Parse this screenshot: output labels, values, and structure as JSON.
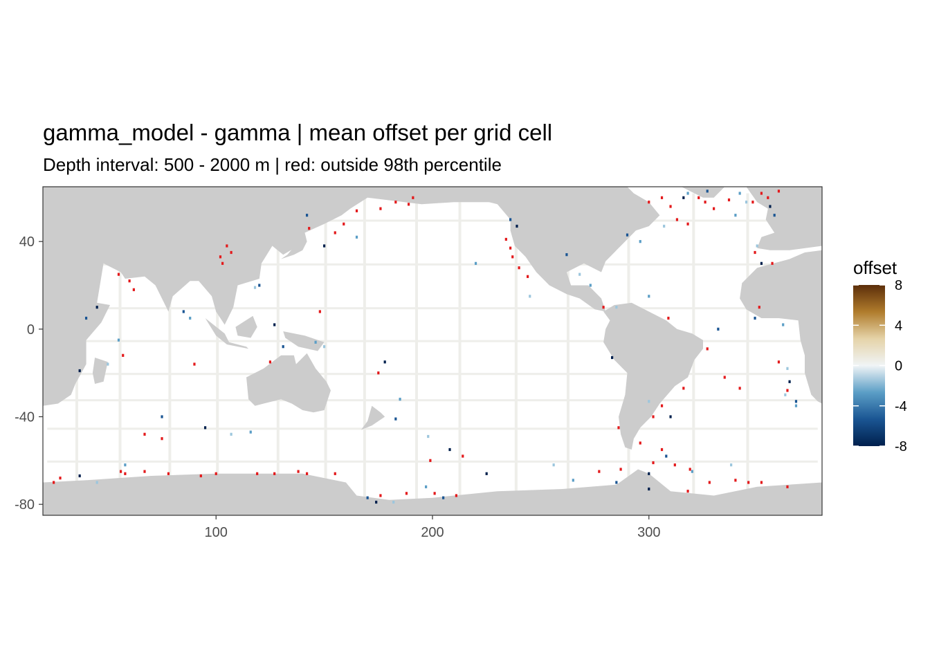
{
  "chart_data": {
    "type": "heatmap",
    "title": "gamma_model - gamma  | mean offset per grid cell",
    "subtitle": "Depth interval: 500 - 2000 m | red: outside 98th percentile",
    "xlabel": "",
    "ylabel": "",
    "xlim": [
      20,
      380
    ],
    "ylim": [
      -85,
      65
    ],
    "x_ticks": [
      100,
      200,
      300
    ],
    "x_tick_labels": [
      "100",
      "200",
      "300"
    ],
    "y_ticks": [
      40,
      0,
      -40,
      -80
    ],
    "y_tick_labels": [
      "40",
      "0",
      "-40",
      "-80"
    ],
    "grid": false,
    "legend": {
      "title": "offset",
      "placement": "right",
      "min": -8,
      "max": 8,
      "ticks": [
        8,
        4,
        0,
        -4,
        -8
      ],
      "tick_labels": [
        "8",
        "4",
        "0",
        "-4",
        "-8"
      ],
      "colors": [
        "#00204d",
        "#1a5593",
        "#5b9ec6",
        "#f0f4f6",
        "#e5d3a8",
        "#b07c2c",
        "#5c2e0a"
      ]
    },
    "colors": {
      "land": "#cccccc",
      "ocean_no_data": "#ffffff",
      "ocean_near_zero": "#eeeeea",
      "outlier": "#e31a1c",
      "panel_border": "#333333"
    },
    "outlier_cells": [
      [
        60,
        22
      ],
      [
        62,
        18
      ],
      [
        103,
        30
      ],
      [
        102,
        33
      ],
      [
        105,
        38
      ],
      [
        107,
        35
      ],
      [
        143,
        46
      ],
      [
        155,
        44
      ],
      [
        159,
        48
      ],
      [
        165,
        54
      ],
      [
        176,
        55
      ],
      [
        183,
        58
      ],
      [
        189,
        57
      ],
      [
        191,
        60
      ],
      [
        234,
        41
      ],
      [
        236,
        37
      ],
      [
        237,
        33
      ],
      [
        240,
        28
      ],
      [
        244,
        24
      ],
      [
        300,
        58
      ],
      [
        306,
        60
      ],
      [
        310,
        56
      ],
      [
        313,
        50
      ],
      [
        318,
        48
      ],
      [
        323,
        60
      ],
      [
        326,
        58
      ],
      [
        330,
        55
      ],
      [
        337,
        59
      ],
      [
        348,
        58
      ],
      [
        352,
        62
      ],
      [
        355,
        60
      ],
      [
        360,
        63
      ],
      [
        349,
        35
      ],
      [
        357,
        30
      ],
      [
        351,
        10
      ],
      [
        279,
        10
      ],
      [
        309,
        5
      ],
      [
        327,
        -9
      ],
      [
        335,
        -22
      ],
      [
        342,
        -27
      ],
      [
        316,
        -27
      ],
      [
        306,
        -35
      ],
      [
        302,
        -40
      ],
      [
        364,
        -28
      ],
      [
        360,
        -15
      ],
      [
        286,
        -45
      ],
      [
        296,
        -52
      ],
      [
        306,
        -55
      ],
      [
        312,
        -62
      ],
      [
        319,
        -64
      ],
      [
        328,
        -70
      ],
      [
        346,
        -70
      ],
      [
        352,
        -70
      ],
      [
        25,
        -70
      ],
      [
        28,
        -68
      ],
      [
        56,
        -65
      ],
      [
        58,
        -66
      ],
      [
        67,
        -65
      ],
      [
        78,
        -66
      ],
      [
        93,
        -67
      ],
      [
        100,
        -66
      ],
      [
        119,
        -66
      ],
      [
        127,
        -66
      ],
      [
        138,
        -65
      ],
      [
        142,
        -66
      ],
      [
        155,
        -66
      ],
      [
        176,
        -76
      ],
      [
        188,
        -75
      ],
      [
        201,
        -75
      ],
      [
        211,
        -76
      ],
      [
        277,
        -65
      ],
      [
        287,
        -64
      ],
      [
        302,
        -61
      ],
      [
        340,
        -69
      ],
      [
        364,
        -72
      ],
      [
        57,
        -12
      ],
      [
        75,
        -50
      ],
      [
        67,
        -48
      ],
      [
        175,
        -20
      ],
      [
        199,
        -60
      ],
      [
        214,
        -58
      ],
      [
        318,
        -74
      ],
      [
        90,
        -16
      ],
      [
        125,
        -15
      ],
      [
        55,
        25
      ],
      [
        148,
        8
      ]
    ],
    "negative_cells": [
      [
        45,
        10
      ],
      [
        40,
        5
      ],
      [
        55,
        -5
      ],
      [
        50,
        -16
      ],
      [
        37,
        -19
      ],
      [
        85,
        8
      ],
      [
        88,
        5
      ],
      [
        118,
        19
      ],
      [
        127,
        2
      ],
      [
        131,
        -8
      ],
      [
        146,
        -6
      ],
      [
        150,
        -8
      ],
      [
        178,
        -15
      ],
      [
        183,
        -41
      ],
      [
        185,
        -32
      ],
      [
        198,
        -49
      ],
      [
        208,
        -55
      ],
      [
        262,
        34
      ],
      [
        273,
        20
      ],
      [
        285,
        10
      ],
      [
        283,
        -13
      ],
      [
        290,
        43
      ],
      [
        296,
        40
      ],
      [
        307,
        47
      ],
      [
        316,
        60
      ],
      [
        327,
        63
      ],
      [
        342,
        62
      ],
      [
        345,
        58
      ],
      [
        356,
        56
      ],
      [
        358,
        52
      ],
      [
        340,
        52
      ],
      [
        350,
        38
      ],
      [
        352,
        30
      ],
      [
        349,
        5
      ],
      [
        362,
        2
      ],
      [
        364,
        -18
      ],
      [
        365,
        -24
      ],
      [
        368,
        -33
      ],
      [
        368,
        -35
      ],
      [
        363,
        -30
      ],
      [
        300,
        -73
      ],
      [
        308,
        -58
      ],
      [
        320,
        -65
      ],
      [
        338,
        -62
      ],
      [
        300,
        -66
      ],
      [
        285,
        -70
      ],
      [
        265,
        -69
      ],
      [
        256,
        -62
      ],
      [
        225,
        -66
      ],
      [
        205,
        -77
      ],
      [
        197,
        -72
      ],
      [
        182,
        -79
      ],
      [
        174,
        -79
      ],
      [
        170,
        -77
      ],
      [
        116,
        -47
      ],
      [
        107,
        -48
      ],
      [
        95,
        -45
      ],
      [
        75,
        -40
      ],
      [
        58,
        -62
      ],
      [
        45,
        -70
      ],
      [
        37,
        -67
      ],
      [
        332,
        0
      ],
      [
        300,
        15
      ],
      [
        268,
        25
      ],
      [
        239,
        47
      ],
      [
        236,
        50
      ],
      [
        318,
        62
      ],
      [
        245,
        15
      ],
      [
        150,
        38
      ],
      [
        142,
        52
      ],
      [
        165,
        42
      ],
      [
        300,
        -33
      ],
      [
        310,
        -40
      ],
      [
        120,
        20
      ],
      [
        220,
        30
      ]
    ]
  }
}
